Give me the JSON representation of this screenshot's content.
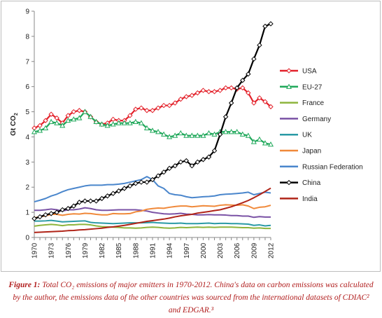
{
  "chart_data": {
    "type": "line",
    "title": "",
    "ylabel": "Gt CO2",
    "xlabel": "",
    "ylim": [
      0,
      9
    ],
    "yticks": [
      0,
      1,
      2,
      3,
      4,
      5,
      6,
      7,
      8,
      9
    ],
    "x": [
      1970,
      1971,
      1972,
      1973,
      1974,
      1975,
      1976,
      1977,
      1978,
      1979,
      1980,
      1981,
      1982,
      1983,
      1984,
      1985,
      1986,
      1987,
      1988,
      1989,
      1990,
      1991,
      1992,
      1993,
      1994,
      1995,
      1996,
      1997,
      1998,
      1999,
      2000,
      2001,
      2002,
      2003,
      2004,
      2005,
      2006,
      2007,
      2008,
      2009,
      2010,
      2011,
      2012
    ],
    "xticks": [
      "1970",
      "1973",
      "1976",
      "1979",
      "1982",
      "1985",
      "1988",
      "1991",
      "1994",
      "1997",
      "2000",
      "2003",
      "2006",
      "2009",
      "2012"
    ],
    "grid": false,
    "legend_position": "right",
    "series": [
      {
        "name": "USA",
        "color": "#e3212a",
        "marker": "diamond",
        "values": [
          4.35,
          4.45,
          4.65,
          4.9,
          4.75,
          4.55,
          4.85,
          5.0,
          5.05,
          5.0,
          4.8,
          4.6,
          4.5,
          4.55,
          4.7,
          4.65,
          4.65,
          4.85,
          5.1,
          5.15,
          5.05,
          5.05,
          5.15,
          5.25,
          5.25,
          5.35,
          5.5,
          5.6,
          5.65,
          5.75,
          5.85,
          5.8,
          5.8,
          5.85,
          5.95,
          5.95,
          5.9,
          5.95,
          5.75,
          5.35,
          5.55,
          5.4,
          5.2
        ]
      },
      {
        "name": "EU-27",
        "color": "#1fa85a",
        "marker": "triangle",
        "values": [
          4.2,
          4.25,
          4.35,
          4.6,
          4.55,
          4.45,
          4.65,
          4.7,
          4.75,
          5.0,
          4.8,
          4.6,
          4.5,
          4.45,
          4.5,
          4.55,
          4.55,
          4.55,
          4.6,
          4.55,
          4.35,
          4.25,
          4.2,
          4.1,
          4.0,
          4.05,
          4.15,
          4.05,
          4.05,
          4.05,
          4.05,
          4.15,
          4.1,
          4.2,
          4.2,
          4.2,
          4.2,
          4.1,
          4.05,
          3.8,
          3.9,
          3.75,
          3.7
        ]
      },
      {
        "name": "France",
        "color": "#8db43c",
        "marker": "none",
        "values": [
          0.45,
          0.48,
          0.5,
          0.52,
          0.5,
          0.47,
          0.5,
          0.5,
          0.52,
          0.52,
          0.5,
          0.46,
          0.43,
          0.42,
          0.41,
          0.4,
          0.38,
          0.38,
          0.37,
          0.38,
          0.4,
          0.41,
          0.4,
          0.38,
          0.37,
          0.38,
          0.4,
          0.39,
          0.4,
          0.41,
          0.4,
          0.41,
          0.4,
          0.41,
          0.41,
          0.41,
          0.4,
          0.39,
          0.39,
          0.37,
          0.38,
          0.36,
          0.36
        ]
      },
      {
        "name": "Germany",
        "color": "#7a52a5",
        "marker": "none",
        "values": [
          1.08,
          1.08,
          1.1,
          1.13,
          1.1,
          1.05,
          1.1,
          1.1,
          1.13,
          1.18,
          1.15,
          1.1,
          1.08,
          1.08,
          1.09,
          1.1,
          1.1,
          1.1,
          1.1,
          1.08,
          1.05,
          1.0,
          0.97,
          0.94,
          0.93,
          0.94,
          0.96,
          0.93,
          0.92,
          0.9,
          0.9,
          0.91,
          0.9,
          0.9,
          0.89,
          0.87,
          0.87,
          0.85,
          0.85,
          0.8,
          0.83,
          0.81,
          0.81
        ]
      },
      {
        "name": "UK",
        "color": "#2a9aa5",
        "marker": "none",
        "values": [
          0.65,
          0.65,
          0.66,
          0.68,
          0.65,
          0.62,
          0.63,
          0.64,
          0.65,
          0.66,
          0.6,
          0.58,
          0.57,
          0.56,
          0.55,
          0.56,
          0.57,
          0.58,
          0.58,
          0.58,
          0.59,
          0.6,
          0.58,
          0.57,
          0.56,
          0.56,
          0.57,
          0.55,
          0.55,
          0.55,
          0.56,
          0.57,
          0.55,
          0.56,
          0.56,
          0.55,
          0.55,
          0.54,
          0.53,
          0.48,
          0.5,
          0.46,
          0.48
        ]
      },
      {
        "name": "Japan",
        "color": "#f0893a",
        "marker": "none",
        "values": [
          0.78,
          0.82,
          0.86,
          0.92,
          0.92,
          0.88,
          0.92,
          0.94,
          0.93,
          0.96,
          0.95,
          0.92,
          0.9,
          0.9,
          0.95,
          0.94,
          0.94,
          0.95,
          1.02,
          1.05,
          1.12,
          1.15,
          1.17,
          1.16,
          1.2,
          1.23,
          1.25,
          1.25,
          1.22,
          1.24,
          1.26,
          1.25,
          1.24,
          1.28,
          1.3,
          1.29,
          1.28,
          1.3,
          1.25,
          1.15,
          1.2,
          1.22,
          1.28
        ]
      },
      {
        "name": "Russian Federation",
        "color": "#4a86cc",
        "marker": "none",
        "values": [
          1.42,
          1.48,
          1.55,
          1.65,
          1.72,
          1.82,
          1.9,
          1.95,
          2.0,
          2.05,
          2.08,
          2.08,
          2.08,
          2.1,
          2.1,
          2.12,
          2.15,
          2.2,
          2.25,
          2.3,
          2.42,
          2.3,
          2.05,
          1.95,
          1.75,
          1.7,
          1.68,
          1.62,
          1.58,
          1.6,
          1.62,
          1.63,
          1.65,
          1.7,
          1.72,
          1.73,
          1.75,
          1.77,
          1.8,
          1.7,
          1.75,
          1.8,
          1.77
        ]
      },
      {
        "name": "China",
        "color": "#000000",
        "marker": "diamond",
        "values": [
          0.75,
          0.82,
          0.9,
          0.95,
          1.0,
          1.1,
          1.15,
          1.25,
          1.4,
          1.45,
          1.45,
          1.45,
          1.55,
          1.65,
          1.75,
          1.85,
          1.95,
          2.05,
          2.15,
          2.2,
          2.2,
          2.3,
          2.45,
          2.6,
          2.75,
          2.85,
          3.0,
          3.05,
          2.85,
          3.0,
          3.1,
          3.2,
          3.45,
          4.1,
          4.8,
          5.35,
          5.95,
          6.25,
          6.5,
          7.1,
          7.65,
          8.4,
          8.5
        ]
      },
      {
        "name": "India",
        "color": "#b02418",
        "marker": "none",
        "values": [
          0.2,
          0.21,
          0.22,
          0.23,
          0.24,
          0.25,
          0.27,
          0.28,
          0.3,
          0.31,
          0.33,
          0.35,
          0.37,
          0.4,
          0.42,
          0.45,
          0.48,
          0.52,
          0.56,
          0.6,
          0.64,
          0.67,
          0.7,
          0.73,
          0.77,
          0.82,
          0.86,
          0.89,
          0.92,
          0.97,
          1.0,
          1.03,
          1.07,
          1.1,
          1.16,
          1.22,
          1.3,
          1.38,
          1.47,
          1.58,
          1.7,
          1.83,
          1.96
        ]
      }
    ]
  },
  "caption": {
    "label": "Figure 1:",
    "text": "Total CO₂ emissions of major emitters in 1970-2012. China's data on carbon emissions was calculated by the author, the emissions data of the other countries was sourced from the international datasets of CDIAC² and EDGAR.³"
  }
}
